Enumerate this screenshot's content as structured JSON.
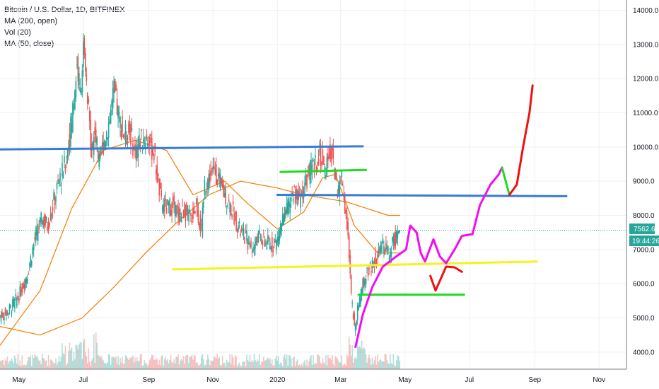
{
  "legend": {
    "title": "Bitcoin / U.S. Dollar, 1D, BITFINEX",
    "ma200": "MA (200, open)",
    "vol": "Vol (20)",
    "ma50": "MA (50, close)"
  },
  "current_price": "7562.6",
  "countdown": "19:44:26",
  "colors": {
    "up": "#26a69a",
    "down": "#ef5350",
    "ma": "#f57c00",
    "blue_line": "#3a7bd5",
    "yellow_line": "#f5f31b",
    "green_line": "#1edb1e",
    "magenta_path": "#f20df2",
    "red_path": "#ef1010",
    "badge": "#26a69a"
  },
  "chart_data": {
    "type": "candlestick",
    "symbol": "Bitcoin / U.S. Dollar",
    "timeframe": "1D",
    "exchange": "BITFINEX",
    "y_ticks": [
      "14000.0",
      "13000.0",
      "12000.0",
      "11000.0",
      "10000.0",
      "9000.0",
      "8000.0",
      "7000.0",
      "6000.0",
      "5000.0",
      "4000.0"
    ],
    "y_tick_values": [
      14000,
      13000,
      12000,
      11000,
      10000,
      9000,
      8000,
      7000,
      6000,
      5000,
      4000
    ],
    "x_ticks": [
      "May",
      "Jul",
      "Sep",
      "Nov",
      "2020",
      "Mar",
      "May",
      "Jul",
      "Sep",
      "Nov"
    ],
    "x_tick_days": [
      0,
      61,
      123,
      184,
      245,
      305,
      366,
      427,
      489,
      550
    ],
    "ylim": [
      3500,
      14300
    ],
    "xlim_days": [
      -18,
      576
    ],
    "price_path": [
      [
        -18,
        5050
      ],
      [
        -10,
        5200
      ],
      [
        0,
        5650
      ],
      [
        8,
        6300
      ],
      [
        15,
        7300
      ],
      [
        22,
        7900
      ],
      [
        27,
        7700
      ],
      [
        33,
        8400
      ],
      [
        38,
        9000
      ],
      [
        44,
        9500
      ],
      [
        50,
        10800
      ],
      [
        55,
        12400
      ],
      [
        58,
        11600
      ],
      [
        61,
        12800
      ],
      [
        65,
        11300
      ],
      [
        69,
        9900
      ],
      [
        72,
        10500
      ],
      [
        76,
        9500
      ],
      [
        80,
        10100
      ],
      [
        85,
        10700
      ],
      [
        90,
        11600
      ],
      [
        95,
        10800
      ],
      [
        100,
        10300
      ],
      [
        105,
        10500
      ],
      [
        110,
        9800
      ],
      [
        116,
        10300
      ],
      [
        122,
        10200
      ],
      [
        128,
        9800
      ],
      [
        135,
        8300
      ],
      [
        140,
        8200
      ],
      [
        146,
        8300
      ],
      [
        152,
        8000
      ],
      [
        157,
        8150
      ],
      [
        163,
        7900
      ],
      [
        168,
        8300
      ],
      [
        173,
        7500
      ],
      [
        176,
        8900
      ],
      [
        182,
        9200
      ],
      [
        186,
        9300
      ],
      [
        192,
        8800
      ],
      [
        198,
        8400
      ],
      [
        204,
        8000
      ],
      [
        210,
        7500
      ],
      [
        216,
        7300
      ],
      [
        222,
        7000
      ],
      [
        226,
        7400
      ],
      [
        233,
        7200
      ],
      [
        240,
        7150
      ],
      [
        244,
        7200
      ],
      [
        249,
        7800
      ],
      [
        254,
        8100
      ],
      [
        260,
        8700
      ],
      [
        266,
        8500
      ],
      [
        271,
        8900
      ],
      [
        276,
        9300
      ],
      [
        280,
        9400
      ],
      [
        285,
        9800
      ],
      [
        290,
        9300
      ],
      [
        294,
        9900
      ],
      [
        298,
        9600
      ],
      [
        302,
        8700
      ],
      [
        306,
        9100
      ],
      [
        311,
        7800
      ],
      [
        315,
        5600
      ],
      [
        318,
        4700
      ],
      [
        321,
        5300
      ],
      [
        325,
        5900
      ],
      [
        330,
        6400
      ],
      [
        335,
        6600
      ],
      [
        340,
        6800
      ],
      [
        345,
        7100
      ],
      [
        350,
        6900
      ],
      [
        356,
        7300
      ],
      [
        361,
        7562
      ]
    ],
    "ma_slow": [
      [
        -18,
        4750
      ],
      [
        20,
        4500
      ],
      [
        60,
        5000
      ],
      [
        90,
        5900
      ],
      [
        120,
        6900
      ],
      [
        150,
        7800
      ],
      [
        180,
        8600
      ],
      [
        210,
        9000
      ],
      [
        245,
        8800
      ],
      [
        270,
        8600
      ],
      [
        290,
        8500
      ],
      [
        310,
        8400
      ],
      [
        330,
        8200
      ],
      [
        350,
        8000
      ],
      [
        361,
        8000
      ]
    ],
    "ma_fast": [
      [
        -18,
        4200
      ],
      [
        20,
        5800
      ],
      [
        50,
        8200
      ],
      [
        80,
        9900
      ],
      [
        110,
        10200
      ],
      [
        140,
        9900
      ],
      [
        165,
        8600
      ],
      [
        195,
        9000
      ],
      [
        215,
        8400
      ],
      [
        245,
        7600
      ],
      [
        270,
        8100
      ],
      [
        288,
        9100
      ],
      [
        300,
        9200
      ],
      [
        318,
        7700
      ],
      [
        340,
        6900
      ],
      [
        361,
        6900
      ]
    ],
    "annotations": {
      "blue_lines": [
        [
          [
            -18,
            9930
          ],
          [
            326,
            10020
          ]
        ],
        [
          [
            245,
            8600
          ],
          [
            519,
            8560
          ]
        ]
      ],
      "yellow_line": [
        [
          146,
          6420
        ],
        [
          491,
          6650
        ]
      ],
      "green_lines": [
        [
          [
            248,
            9270
          ],
          [
            329,
            9330
          ]
        ],
        [
          [
            322,
            5680
          ],
          [
            422,
            5680
          ]
        ]
      ],
      "red_arrow": [
        [
          390,
          6230
        ],
        [
          395,
          5800
        ],
        [
          405,
          6500
        ],
        [
          413,
          6480
        ],
        [
          420,
          6350
        ]
      ],
      "magenta_curve": [
        [
          319,
          4150
        ],
        [
          326,
          5100
        ],
        [
          335,
          5900
        ],
        [
          345,
          6500
        ],
        [
          360,
          6850
        ],
        [
          367,
          7000
        ],
        [
          371,
          7700
        ],
        [
          377,
          7500
        ],
        [
          381,
          6900
        ],
        [
          385,
          6650
        ],
        [
          393,
          7300
        ],
        [
          399,
          6800
        ],
        [
          405,
          6600
        ],
        [
          413,
          7000
        ],
        [
          420,
          7400
        ],
        [
          430,
          7450
        ],
        [
          437,
          8300
        ],
        [
          447,
          8900
        ],
        [
          455,
          9200
        ],
        [
          458,
          9400
        ]
      ],
      "green_diagonal": [
        [
          458,
          9400
        ],
        [
          465,
          8600
        ]
      ],
      "red_curve": [
        [
          465,
          8600
        ],
        [
          472,
          8900
        ],
        [
          478,
          10000
        ],
        [
          484,
          11000
        ],
        [
          487,
          11800
        ]
      ]
    }
  }
}
